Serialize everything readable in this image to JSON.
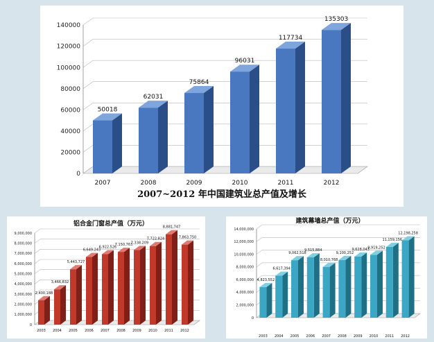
{
  "chart_data": [
    {
      "type": "bar",
      "title": "2007~2012 年中国建筑业总产值及增长",
      "categories": [
        "2007",
        "2008",
        "2009",
        "2010",
        "2011",
        "2012"
      ],
      "values": [
        50018,
        62031,
        75864,
        96031,
        117734,
        135303
      ],
      "value_labels": [
        "50018",
        "62031",
        "75864",
        "96031",
        "117734",
        "135303"
      ],
      "yticks": [
        "0",
        "20000",
        "40000",
        "60000",
        "80000",
        "100000",
        "120000",
        "140000"
      ],
      "ylim": [
        0,
        140000
      ],
      "colors": {
        "front": "#4a78c0",
        "side": "#2a4f88",
        "top": "#7fa6dc"
      }
    },
    {
      "type": "bar",
      "title": "铝合金门窗总产值（万元）",
      "categories": [
        "2003",
        "2004",
        "2005",
        "2006",
        "2007",
        "2008",
        "2009",
        "2010",
        "2011",
        "2012"
      ],
      "values": [
        2400188,
        3466832,
        5443727,
        6649243,
        6922526,
        7150763,
        7338209,
        7722824,
        8881747,
        7863750
      ],
      "value_labels": [
        "2,400,188",
        "3,466,832",
        "5,443,727",
        "6,649,243",
        "6,922,526",
        "7,150,763",
        "7,338,209",
        "7,722,824",
        "8,881,747",
        "7,863,750"
      ],
      "yticks": [
        "0",
        "1,000,000",
        "2,000,000",
        "3,000,000",
        "4,000,000",
        "5,000,000",
        "6,000,000",
        "7,000,000",
        "8,000,000",
        "9,000,000"
      ],
      "ylim": [
        0,
        9000000
      ],
      "colors": {
        "front": "#c0392b",
        "side": "#7f1f17",
        "top": "#e07a70"
      }
    },
    {
      "type": "bar",
      "title": "建筑幕墙总产值（万元）",
      "categories": [
        "2003",
        "2004",
        "2005",
        "2006",
        "2007",
        "2008",
        "2009",
        "2010",
        "2011",
        "2012"
      ],
      "values": [
        4823552,
        6617394,
        9062518,
        9515884,
        8010768,
        9100252,
        9628043,
        9919252,
        11159156,
        12198258
      ],
      "value_labels": [
        "4,823,552",
        "6,617,394",
        "9,062,518",
        "9,515,884",
        "8,010,768",
        "9,100,252",
        "9,628,043",
        "9,919,252",
        "11,159,156",
        "12,198,258"
      ],
      "yticks": [
        "0",
        "2,000,000",
        "4,000,000",
        "6,000,000",
        "8,000,000",
        "10,000,000",
        "12,000,000",
        "14,000,000"
      ],
      "ylim": [
        0,
        14000000
      ],
      "colors": {
        "front": "#3ba7c4",
        "side": "#1f6f85",
        "top": "#7fd0e3"
      }
    }
  ]
}
